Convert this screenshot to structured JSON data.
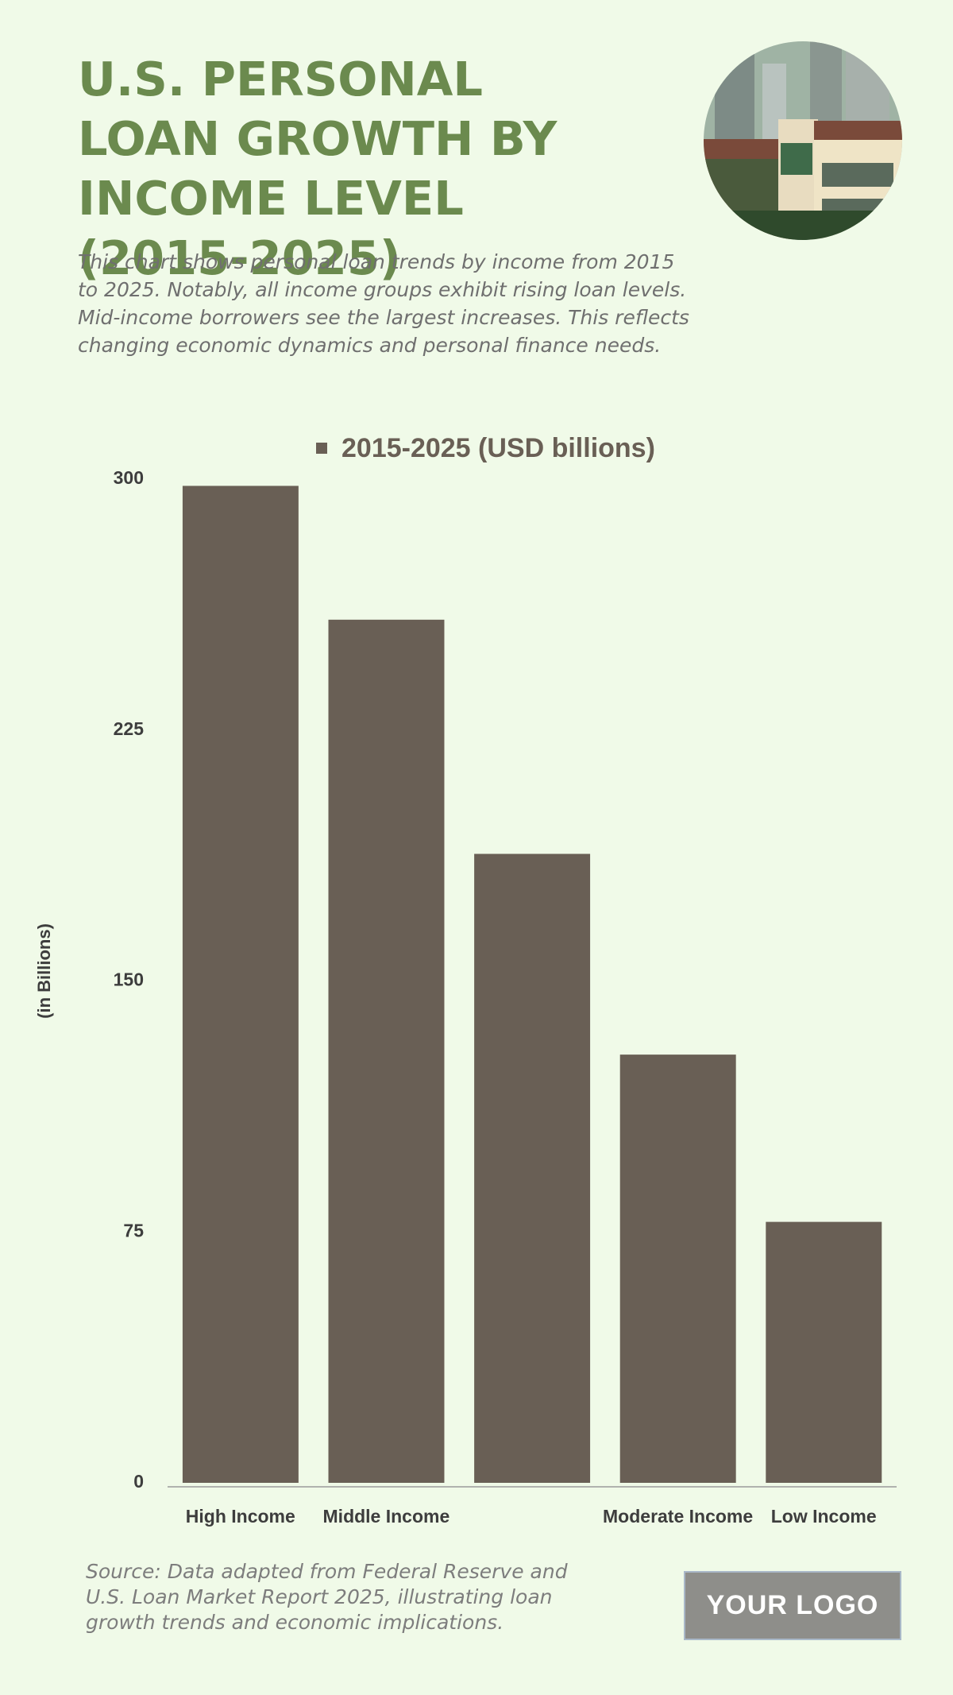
{
  "header": {
    "title": "U.S. PERSONAL LOAN GROWTH BY INCOME LEVEL (2015-2025)",
    "subtitle": "This chart shows personal loan trends by income from 2015 to 2025. Notably, all income groups exhibit rising loan levels. Mid-income borrowers see the largest increases. This reflects changing economic dynamics and personal finance needs."
  },
  "chart_data": {
    "type": "bar",
    "categories": [
      "High Income",
      "Middle Income",
      null,
      "Moderate Income",
      "Low Income"
    ],
    "series": [
      {
        "name": "2015-2025 (USD billions)",
        "color": "#695f55",
        "values": [
          298,
          258,
          188,
          128,
          78
        ]
      }
    ],
    "y_label": "(in Billions)",
    "ylim": [
      0,
      300
    ],
    "yticks": [
      0,
      75,
      150,
      225,
      300
    ],
    "grid": false,
    "legend": "top"
  },
  "footer": {
    "source": "Source: Data adapted from Federal Reserve and U.S. Loan Market Report 2025, illustrating loan growth trends and economic implications.",
    "logo": "YOUR LOGO"
  }
}
